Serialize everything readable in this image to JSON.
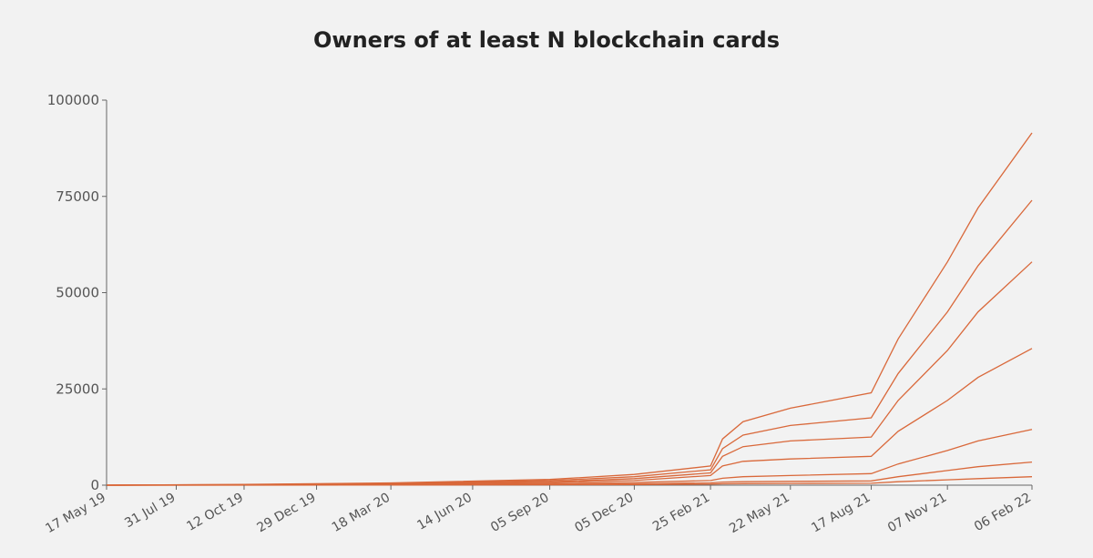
{
  "chart_data": {
    "type": "line",
    "title": "Owners of at least N blockchain cards",
    "xlabel": "",
    "ylabel": "",
    "ylim": [
      0,
      100000
    ],
    "y_ticks": [
      0,
      25000,
      50000,
      75000,
      100000
    ],
    "x_ticks": [
      "17 May 19",
      "31 Jul 19",
      "12 Oct 19",
      "29 Dec 19",
      "18 Mar 20",
      "14 Jun 20",
      "05 Sep 20",
      "05 Dec 20",
      "25 Feb 21",
      "22 May 21",
      "17 Aug 21",
      "07 Nov 21",
      "06 Feb 22"
    ],
    "color": "#d9683a",
    "grid": false,
    "legend": "none",
    "x": [
      "17 May 19",
      "12 Oct 19",
      "18 Mar 20",
      "05 Sep 20",
      "05 Dec 20",
      "25 Feb 21",
      "10 Mar 21",
      "01 Apr 21",
      "22 May 21",
      "17 Aug 21",
      "15 Sep 21",
      "07 Nov 21",
      "10 Dec 21",
      "06 Feb 22"
    ],
    "series": [
      {
        "values": [
          0,
          200,
          600,
          1500,
          2800,
          5000,
          12000,
          16500,
          20000,
          24000,
          38000,
          58000,
          72000,
          91500
        ]
      },
      {
        "values": [
          0,
          150,
          500,
          1200,
          2200,
          4000,
          9500,
          13000,
          15500,
          17500,
          29000,
          45000,
          57000,
          74000
        ]
      },
      {
        "values": [
          0,
          100,
          400,
          900,
          1700,
          3200,
          7500,
          10000,
          11500,
          12500,
          22000,
          35000,
          45000,
          58000
        ]
      },
      {
        "values": [
          0,
          70,
          300,
          700,
          1200,
          2500,
          5000,
          6200,
          6800,
          7500,
          14000,
          22000,
          28000,
          35500
        ]
      },
      {
        "values": [
          0,
          40,
          150,
          400,
          700,
          1200,
          1800,
          2200,
          2500,
          3000,
          5500,
          9000,
          11500,
          14500
        ]
      },
      {
        "values": [
          0,
          20,
          80,
          200,
          350,
          600,
          800,
          900,
          1000,
          1100,
          2200,
          3800,
          4800,
          6000
        ]
      },
      {
        "values": [
          0,
          10,
          40,
          90,
          150,
          250,
          350,
          400,
          450,
          500,
          900,
          1400,
          1700,
          2200
        ]
      }
    ]
  }
}
